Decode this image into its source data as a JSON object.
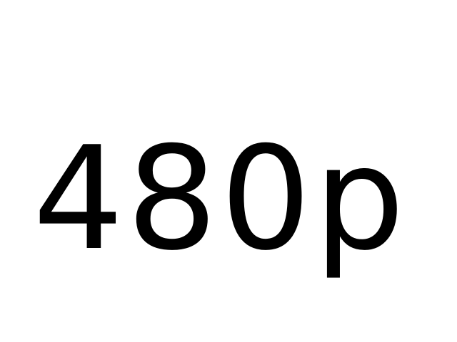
{
  "label": "480p",
  "colors": {
    "background": "#ffffff",
    "text": "#000000"
  }
}
